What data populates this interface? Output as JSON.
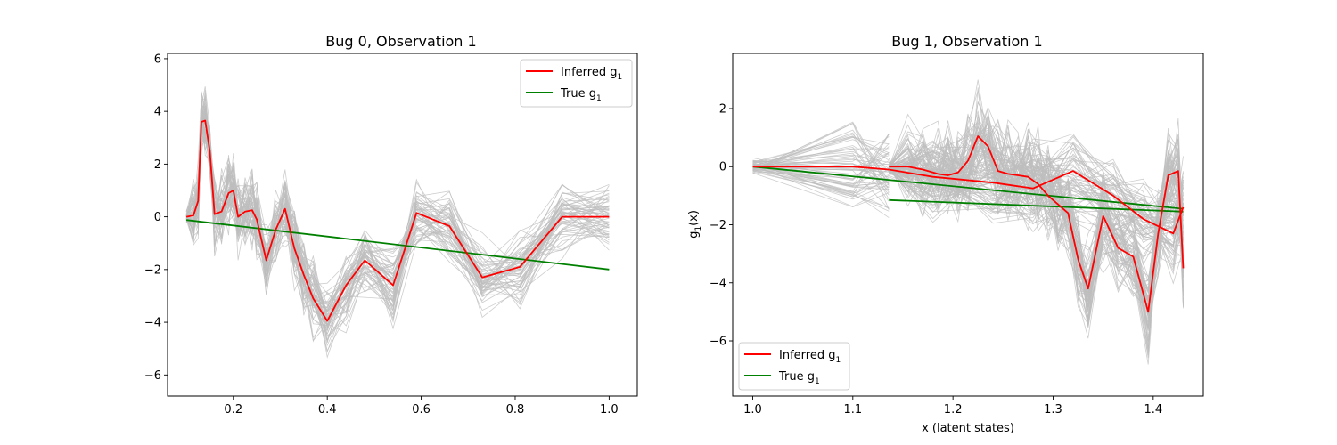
{
  "chart_data": [
    {
      "type": "line",
      "title": "Bug 0, Observation 1",
      "xlabel": "",
      "ylabel": "",
      "xlim": [
        0.06,
        1.06
      ],
      "ylim": [
        -6.8,
        6.2
      ],
      "xticks": [
        0.2,
        0.4,
        0.6,
        0.8,
        1.0
      ],
      "xtick_labels": [
        "0.2",
        "0.4",
        "0.6",
        "0.8",
        "1.0"
      ],
      "yticks": [
        -6,
        -4,
        -2,
        0,
        2,
        4,
        6
      ],
      "ytick_labels": [
        "−6",
        "−4",
        "−2",
        "0",
        "2",
        "4",
        "6"
      ],
      "legend_position": "upper right",
      "grey_samples": {
        "color": "#bdbdbd",
        "count": 60,
        "spread": 1.1
      },
      "series": [
        {
          "name": "Inferred g1",
          "legend_main": "Inferred g",
          "legend_sub": "1",
          "color": "#ff0000",
          "x": [
            0.1,
            0.115,
            0.125,
            0.132,
            0.14,
            0.15,
            0.16,
            0.175,
            0.19,
            0.2,
            0.21,
            0.225,
            0.24,
            0.25,
            0.27,
            0.29,
            0.31,
            0.33,
            0.35,
            0.37,
            0.4,
            0.44,
            0.48,
            0.54,
            0.59,
            0.66,
            0.73,
            0.81,
            0.9,
            1.0
          ],
          "y": [
            0.0,
            0.05,
            0.6,
            3.6,
            3.65,
            2.5,
            0.1,
            0.2,
            0.9,
            1.0,
            0.0,
            0.2,
            0.25,
            -0.1,
            -1.65,
            -0.5,
            0.3,
            -1.2,
            -2.2,
            -3.1,
            -3.95,
            -2.6,
            -1.65,
            -2.6,
            0.15,
            -0.35,
            -2.3,
            -1.9,
            0.0,
            0.0
          ]
        },
        {
          "name": "True g1",
          "legend_main": "True g",
          "legend_sub": "1",
          "color": "#008000",
          "x": [
            0.1,
            1.0
          ],
          "y": [
            -0.12,
            -2.0
          ]
        }
      ]
    },
    {
      "type": "line",
      "title": "Bug 1, Observation 1",
      "xlabel": "x (latent states)",
      "ylabel_main": "g",
      "ylabel_sub": "1",
      "ylabel_tail": "(x)",
      "xlim": [
        0.98,
        1.45
      ],
      "ylim": [
        -7.9,
        3.9
      ],
      "xticks": [
        1.0,
        1.1,
        1.2,
        1.3,
        1.4
      ],
      "xtick_labels": [
        "1.0",
        "1.1",
        "1.2",
        "1.3",
        "1.4"
      ],
      "yticks": [
        -6,
        -4,
        -2,
        0,
        2
      ],
      "ytick_labels": [
        "−6",
        "−4",
        "−2",
        "0",
        "2"
      ],
      "legend_position": "lower left",
      "grey_samples": {
        "color": "#bdbdbd",
        "count": 60,
        "spread": 1.3
      },
      "series": [
        {
          "name": "Inferred g1",
          "legend_main": "Inferred g",
          "legend_sub": "1",
          "color": "#ff0000",
          "segments": [
            {
              "x": [
                1.0,
                1.1,
                1.136
              ],
              "y": [
                0.0,
                0.0,
                -0.1
              ]
            },
            {
              "x": [
                1.136,
                1.155,
                1.17,
                1.185,
                1.195,
                1.205,
                1.215,
                1.225,
                1.235,
                1.245,
                1.255,
                1.265,
                1.275,
                1.285,
                1.295,
                1.305,
                1.315,
                1.325,
                1.335,
                1.35,
                1.365,
                1.38,
                1.395,
                1.405,
                1.415,
                1.425,
                1.43
              ],
              "y": [
                0.0,
                0.0,
                -0.1,
                -0.25,
                -0.3,
                -0.2,
                0.2,
                1.05,
                0.7,
                -0.15,
                -0.25,
                -0.3,
                -0.35,
                -0.6,
                -1.0,
                -1.3,
                -1.6,
                -3.2,
                -4.2,
                -1.7,
                -2.8,
                -3.1,
                -5.0,
                -2.3,
                -0.3,
                -0.15,
                -3.5
              ]
            },
            {
              "x": [
                1.136,
                1.18,
                1.24,
                1.28,
                1.32,
                1.36,
                1.39,
                1.42,
                1.43
              ],
              "y": [
                -0.1,
                -0.35,
                -0.55,
                -0.75,
                -0.15,
                -1.0,
                -1.8,
                -2.3,
                -1.4
              ]
            }
          ]
        },
        {
          "name": "True g1",
          "legend_main": "True g",
          "legend_sub": "1",
          "color": "#008000",
          "segments": [
            {
              "x": [
                1.0,
                1.43
              ],
              "y": [
                0.0,
                -1.45
              ]
            },
            {
              "x": [
                1.136,
                1.43
              ],
              "y": [
                -1.15,
                -1.55
              ]
            }
          ]
        }
      ]
    }
  ]
}
